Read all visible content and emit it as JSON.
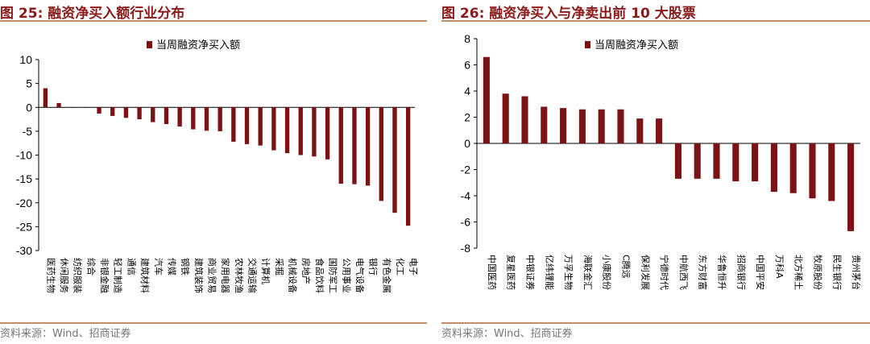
{
  "colors": {
    "bar": "#7b1315",
    "title": "#8b1a1a",
    "rule": "#c0906a",
    "source": "#777777"
  },
  "chart_data": [
    {
      "type": "bar",
      "title": "图 25:  融资净买入额行业分布",
      "legend": "当周融资净买入额",
      "source": "资料来源：Wind、招商证券",
      "ylim": [
        -30,
        10
      ],
      "yticks": [
        10,
        5,
        0,
        -5,
        -10,
        -15,
        -20,
        -25,
        -30
      ],
      "categories": [
        "医药生物",
        "休闲服务",
        "纺织服装",
        "综合",
        "非银金融",
        "轻工制造",
        "通信",
        "建筑材料",
        "汽车",
        "传媒",
        "钢铁",
        "建筑装饰",
        "商业贸易",
        "家用电器",
        "农林牧渔",
        "交通运输",
        "计算机",
        "采掘",
        "机械设备",
        "房地产",
        "食品饮料",
        "国防军工",
        "公用事业",
        "电气设备",
        "银行",
        "有色金属",
        "化工",
        "电子"
      ],
      "values": [
        4.0,
        0.9,
        0.0,
        -0.1,
        -1.3,
        -1.8,
        -2.2,
        -2.5,
        -3.1,
        -3.5,
        -4.0,
        -4.6,
        -4.9,
        -5.0,
        -7.2,
        -7.7,
        -8.0,
        -9.0,
        -9.6,
        -10.0,
        -10.3,
        -10.9,
        -16.0,
        -16.1,
        -16.4,
        -19.6,
        -22.1,
        -24.8
      ]
    },
    {
      "type": "bar",
      "title": "图 26:  融资净买入与净卖出前 10 大股票",
      "legend": "当周融资净买入额",
      "source": "资料来源：Wind、招商证券",
      "ylim": [
        -8,
        8
      ],
      "yticks": [
        8,
        6,
        4,
        2,
        0,
        -2,
        -4,
        -6,
        -8
      ],
      "categories": [
        "中国医药",
        "复星医药",
        "中银证券",
        "亿纬锂能",
        "万孚生物",
        "海联金汇",
        "小康股份",
        "C腾远",
        "保利发展",
        "宁德时代",
        "中航西飞",
        "东方财富",
        "华鲁恒升",
        "招商银行",
        "中国平安",
        "万科A",
        "北方稀土",
        "牧原股份",
        "民生银行",
        "贵州茅台"
      ],
      "values": [
        6.6,
        3.8,
        3.6,
        2.8,
        2.7,
        2.6,
        2.6,
        2.6,
        1.9,
        1.9,
        -2.7,
        -2.7,
        -2.7,
        -2.9,
        -2.9,
        -3.7,
        -3.8,
        -4.2,
        -4.4,
        -6.7
      ]
    }
  ]
}
